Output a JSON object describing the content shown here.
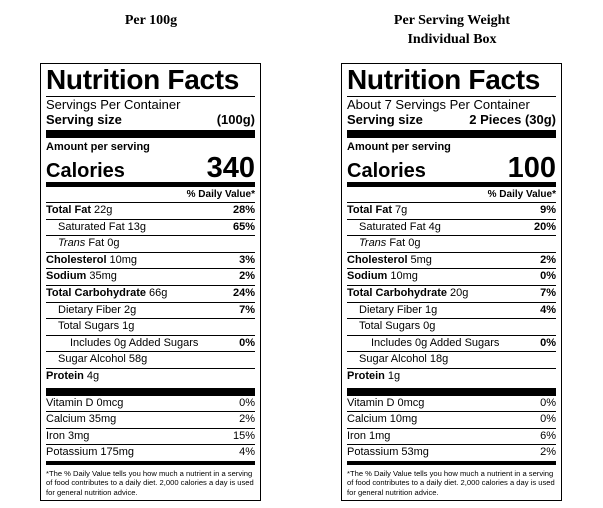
{
  "labels": [
    {
      "heading": [
        "Per 100g"
      ],
      "title": "Nutrition Facts",
      "servings": "Servings Per Container",
      "serving_size_label": "Serving size",
      "serving_size": "(100g)",
      "amount_per_serving": "Amount per serving",
      "calories_label": "Calories",
      "calories": "340",
      "daily_value_header": "% Daily Value*",
      "nutrients": [
        {
          "name": "Total Fat",
          "amount": "22g",
          "dv": "28%"
        },
        {
          "name": "Saturated Fat",
          "amount": "13g",
          "dv": "65%"
        },
        {
          "italic": "Trans",
          "name": "Fat",
          "amount": "0g"
        },
        {
          "name": "Cholesterol",
          "amount": "10mg",
          "dv": "3%"
        },
        {
          "name": "Sodium",
          "amount": "35mg",
          "dv": "2%"
        },
        {
          "name": "Total Carbohydrate",
          "amount": "66g",
          "dv": "24%"
        },
        {
          "name": "Dietary Fiber",
          "amount": "2g",
          "dv": "7%"
        },
        {
          "name": "Total Sugars",
          "amount": "1g"
        },
        {
          "name": "Includes 0g Added Sugars",
          "dv": "0%"
        },
        {
          "name": "Sugar Alcohol",
          "amount": "58g"
        },
        {
          "name": "Protein",
          "amount": "4g"
        }
      ],
      "vitamins": [
        {
          "name": "Vitamin D",
          "amount": "0mcg",
          "dv": "0%"
        },
        {
          "name": "Calcium",
          "amount": "35mg",
          "dv": "2%"
        },
        {
          "name": "Iron",
          "amount": "3mg",
          "dv": "15%"
        },
        {
          "name": "Potassium",
          "amount": "175mg",
          "dv": "4%"
        }
      ],
      "footnote": "*The % Daily Value tells you how much a nutrient in a serving of food contributes to a daily diet. 2,000 calories a day is used for general nutrition advice."
    },
    {
      "heading": [
        "Per Serving Weight",
        "Individual Box"
      ],
      "title": "Nutrition Facts",
      "servings": "About 7 Servings Per Container",
      "serving_size_label": "Serving size",
      "serving_size": "2 Pieces (30g)",
      "amount_per_serving": "Amount per serving",
      "calories_label": "Calories",
      "calories": "100",
      "daily_value_header": "% Daily Value*",
      "nutrients": [
        {
          "name": "Total Fat",
          "amount": "7g",
          "dv": "9%"
        },
        {
          "name": "Saturated Fat",
          "amount": "4g",
          "dv": "20%"
        },
        {
          "italic": "Trans",
          "name": "Fat",
          "amount": "0g"
        },
        {
          "name": "Cholesterol",
          "amount": "5mg",
          "dv": "2%"
        },
        {
          "name": "Sodium",
          "amount": "10mg",
          "dv": "0%"
        },
        {
          "name": "Total Carbohydrate",
          "amount": "20g",
          "dv": "7%"
        },
        {
          "name": "Dietary Fiber",
          "amount": "1g",
          "dv": "4%"
        },
        {
          "name": "Total Sugars",
          "amount": "0g"
        },
        {
          "name": "Includes 0g Added Sugars",
          "dv": "0%"
        },
        {
          "name": "Sugar Alcohol",
          "amount": "18g"
        },
        {
          "name": "Protein",
          "amount": "1g"
        }
      ],
      "vitamins": [
        {
          "name": "Vitamin D",
          "amount": "0mcg",
          "dv": "0%"
        },
        {
          "name": "Calcium",
          "amount": "10mg",
          "dv": "0%"
        },
        {
          "name": "Iron",
          "amount": "1mg",
          "dv": "6%"
        },
        {
          "name": "Potassium",
          "amount": "53mg",
          "dv": "2%"
        }
      ],
      "footnote": "*The % Daily Value tells you how much a nutrient in a serving of food contributes to a daily diet. 2,000 calories a day is used for general nutrition advice."
    }
  ]
}
